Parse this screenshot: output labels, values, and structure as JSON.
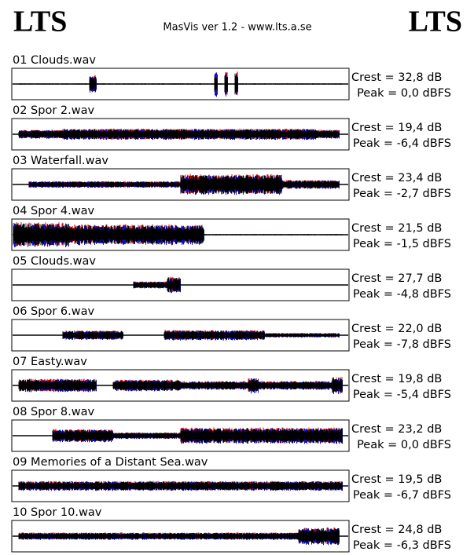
{
  "header": {
    "left_logo": "LTS",
    "title": "MasVis ver 1.2 - www.lts.a.se",
    "right_logo": "LTS"
  },
  "tracks": [
    {
      "name": "01 Clouds.wav",
      "crest": "Crest = 32,8 dB",
      "peak": "Peak = 0,0 dBFS"
    },
    {
      "name": "02 Spor 2.wav",
      "crest": "Crest = 19,4 dB",
      "peak": "Peak = -6,4 dBFS"
    },
    {
      "name": "03 Waterfall.wav",
      "crest": "Crest = 23,4 dB",
      "peak": "Peak = -2,7 dBFS"
    },
    {
      "name": "04 Spor 4.wav",
      "crest": "Crest = 21,5 dB",
      "peak": "Peak = -1,5 dBFS"
    },
    {
      "name": "05 Clouds.wav",
      "crest": "Crest = 27,7 dB",
      "peak": "Peak = -4,8 dBFS"
    },
    {
      "name": "06 Spor 6.wav",
      "crest": "Crest = 22,0 dB",
      "peak": "Peak = -7,8 dBFS"
    },
    {
      "name": "07 Easty.wav",
      "crest": "Crest = 19,8 dB",
      "peak": "Peak = -5,4 dBFS"
    },
    {
      "name": "08 Spor 8.wav",
      "crest": "Crest = 23,2 dB",
      "peak": "Peak = 0,0 dBFS"
    },
    {
      "name": "09 Memories of a Distant Sea.wav",
      "crest": "Crest = 19,5 dB",
      "peak": "Peak = -6,7 dBFS"
    },
    {
      "name": "10 Spor 10.wav",
      "crest": "Crest = 24,8 dB",
      "peak": "Peak = -6,3 dBFS"
    }
  ]
}
